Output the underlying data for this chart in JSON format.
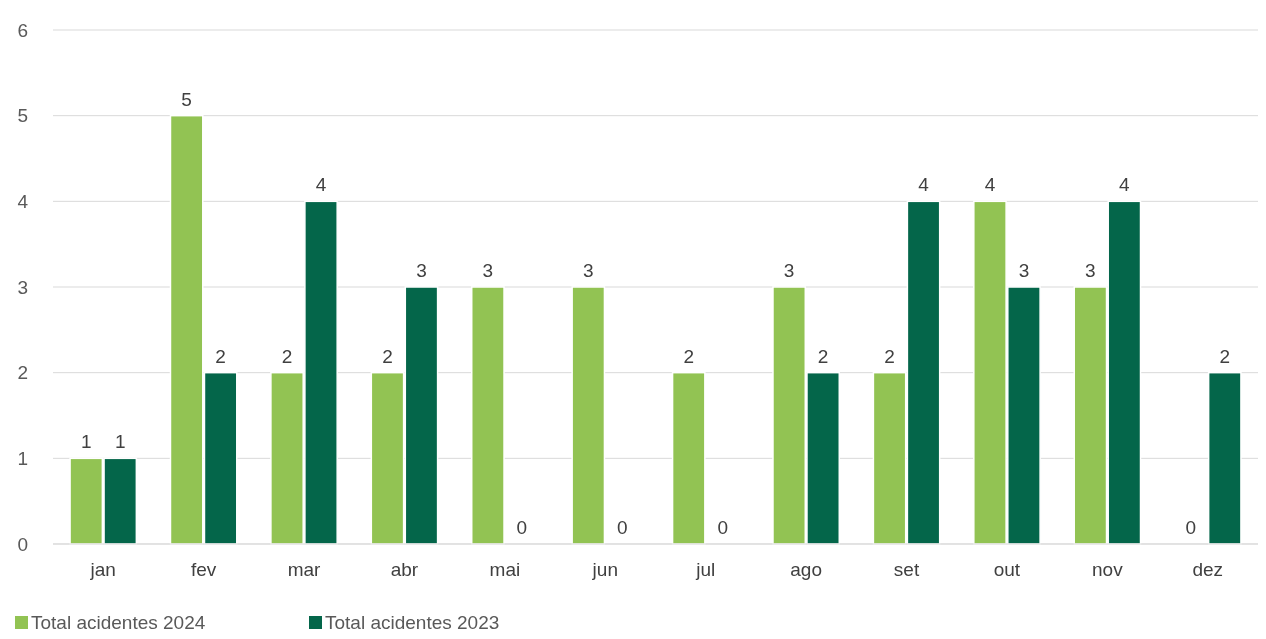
{
  "chart_data": {
    "type": "bar",
    "categories": [
      "jan",
      "fev",
      "mar",
      "abr",
      "mai",
      "jun",
      "jul",
      "ago",
      "set",
      "out",
      "nov",
      "dez"
    ],
    "series": [
      {
        "name": "Total acidentes 2024",
        "color": "#92c353",
        "values": [
          1,
          5,
          2,
          2,
          3,
          3,
          2,
          3,
          2,
          4,
          3,
          0
        ]
      },
      {
        "name": "Total acidentes 2023",
        "color": "#04664a",
        "values": [
          1,
          2,
          4,
          3,
          0,
          0,
          0,
          2,
          4,
          3,
          4,
          2
        ]
      }
    ],
    "ylim": [
      0,
      6
    ],
    "yticks": [
      0,
      1,
      2,
      3,
      4,
      5,
      6
    ],
    "grid": "y",
    "legend": "bottom left",
    "data_labels": true
  }
}
